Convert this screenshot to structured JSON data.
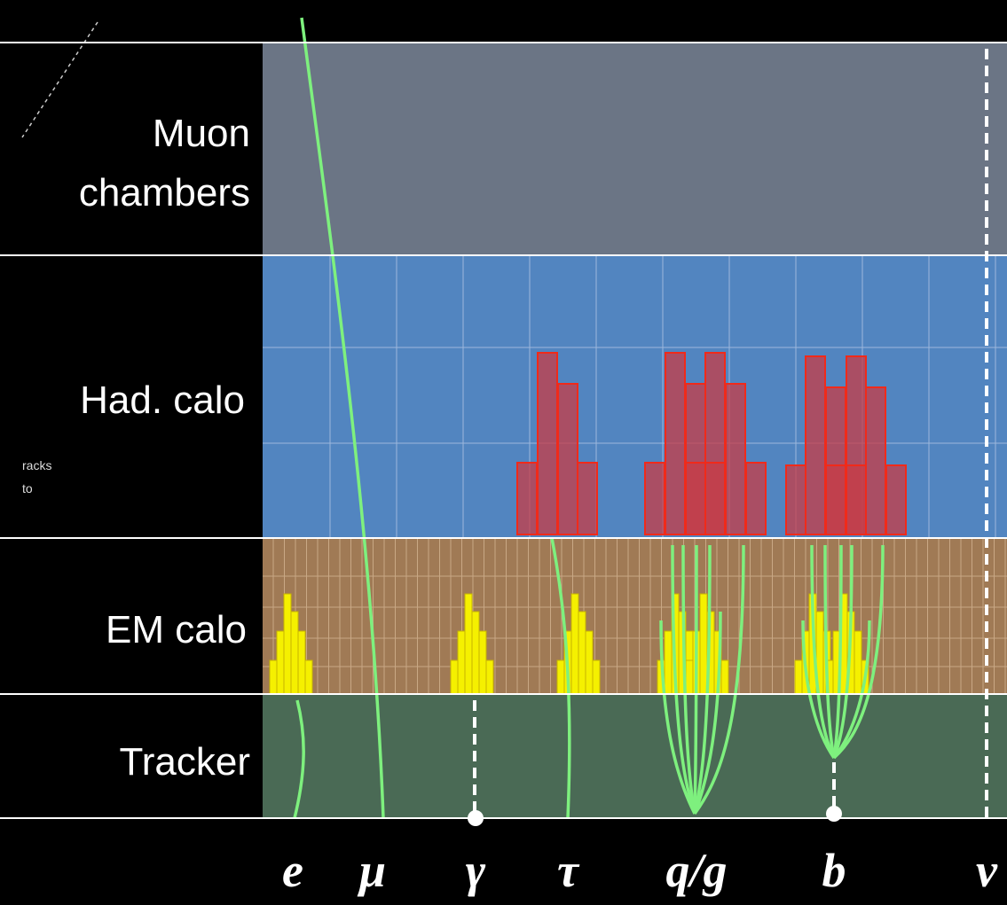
{
  "layers": [
    {
      "lines": [
        "Muon",
        "chambers"
      ]
    },
    {
      "lines": [
        "Had. calo"
      ]
    },
    {
      "lines": [
        "EM calo"
      ]
    },
    {
      "lines": [
        "Tracker"
      ]
    }
  ],
  "note": [
    "racks",
    "to"
  ],
  "particles": [
    "e",
    "μ",
    "γ",
    "τ",
    "q/g",
    "b",
    "ν"
  ]
}
